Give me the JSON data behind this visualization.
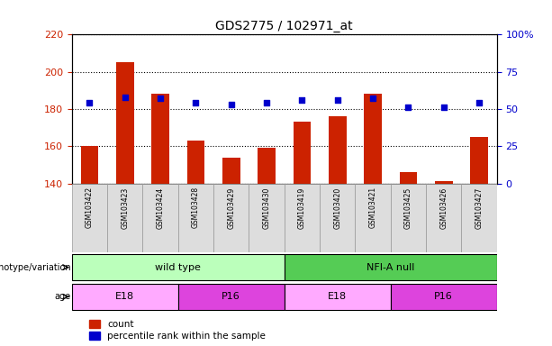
{
  "title": "GDS2775 / 102971_at",
  "samples": [
    "GSM103422",
    "GSM103423",
    "GSM103424",
    "GSM103428",
    "GSM103429",
    "GSM103430",
    "GSM103419",
    "GSM103420",
    "GSM103421",
    "GSM103425",
    "GSM103426",
    "GSM103427"
  ],
  "counts": [
    160,
    205,
    188,
    163,
    154,
    159,
    173,
    176,
    188,
    146,
    141,
    165
  ],
  "percentile_ranks": [
    54,
    58,
    57,
    54,
    53,
    54,
    56,
    56,
    57,
    51,
    51,
    54
  ],
  "ylim_left": [
    140,
    220
  ],
  "ylim_right": [
    0,
    100
  ],
  "yticks_left": [
    140,
    160,
    180,
    200,
    220
  ],
  "yticks_right": [
    0,
    25,
    50,
    75,
    100
  ],
  "bar_color": "#cc2200",
  "dot_color": "#0000cc",
  "grid_color": "#000000",
  "tick_label_color_left": "#cc2200",
  "tick_label_color_right": "#0000cc",
  "genotype_groups": [
    {
      "label": "wild type",
      "start": 0,
      "end": 6,
      "color": "#bbffbb"
    },
    {
      "label": "NFI-A null",
      "start": 6,
      "end": 12,
      "color": "#55cc55"
    }
  ],
  "age_groups": [
    {
      "label": "E18",
      "start": 0,
      "end": 3,
      "color": "#ffaaff"
    },
    {
      "label": "P16",
      "start": 3,
      "end": 6,
      "color": "#dd44dd"
    },
    {
      "label": "E18",
      "start": 6,
      "end": 9,
      "color": "#ffaaff"
    },
    {
      "label": "P16",
      "start": 9,
      "end": 12,
      "color": "#dd44dd"
    }
  ],
  "legend_items": [
    {
      "label": "count",
      "color": "#cc2200"
    },
    {
      "label": "percentile rank within the sample",
      "color": "#0000cc"
    }
  ],
  "bg_color": "#ffffff"
}
